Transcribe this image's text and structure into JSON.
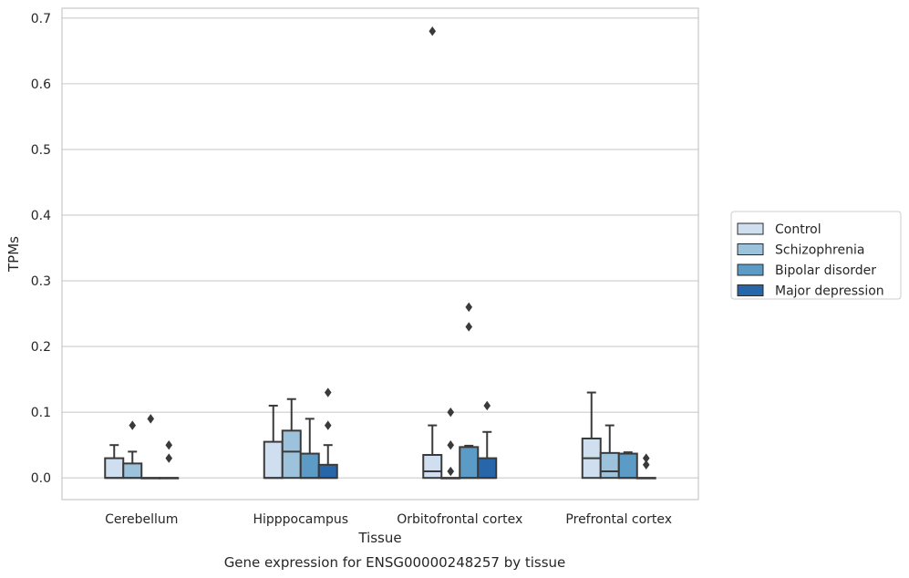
{
  "caption": "Gene expression for ENSG00000248257 by tissue",
  "colors": {
    "Control": "#cfdff0",
    "Schizophrenia": "#9dc3dc",
    "Bipolar disorder": "#5b9bc6",
    "Major depression": "#2766a8",
    "outline": "#3a3a3a",
    "grid": "#cccccc",
    "frame": "#c8c8c8"
  },
  "chart_data": {
    "type": "boxplot",
    "title": "",
    "xlabel": "Tissue",
    "ylabel": "TPMs",
    "ylim": [
      -0.033,
      0.715
    ],
    "yticks": [
      0.0,
      0.1,
      0.2,
      0.3,
      0.4,
      0.5,
      0.6,
      0.7
    ],
    "ytick_labels": [
      "0.0",
      "0.1",
      "0.2",
      "0.3",
      "0.4",
      "0.5",
      "0.6",
      "0.7"
    ],
    "grid": true,
    "legend_position": "right",
    "categories": [
      "Cerebellum",
      "Hipppocampus",
      "Orbitofrontal cortex",
      "Prefrontal cortex"
    ],
    "series": [
      {
        "name": "Control",
        "boxes": [
          {
            "q1": 0.0,
            "median": 0.0,
            "q3": 0.03,
            "whisker_low": 0.0,
            "whisker_high": 0.05,
            "outliers": []
          },
          {
            "q1": 0.0,
            "median": 0.0,
            "q3": 0.055,
            "whisker_low": 0.0,
            "whisker_high": 0.11,
            "outliers": []
          },
          {
            "q1": 0.0,
            "median": 0.01,
            "q3": 0.035,
            "whisker_low": 0.0,
            "whisker_high": 0.08,
            "outliers": [
              0.68
            ]
          },
          {
            "q1": 0.0,
            "median": 0.03,
            "q3": 0.06,
            "whisker_low": 0.0,
            "whisker_high": 0.13,
            "outliers": []
          }
        ]
      },
      {
        "name": "Schizophrenia",
        "boxes": [
          {
            "q1": 0.0,
            "median": 0.0,
            "q3": 0.022,
            "whisker_low": 0.0,
            "whisker_high": 0.04,
            "outliers": [
              0.08
            ]
          },
          {
            "q1": 0.0,
            "median": 0.04,
            "q3": 0.072,
            "whisker_low": 0.0,
            "whisker_high": 0.12,
            "outliers": []
          },
          {
            "q1": 0.0,
            "median": 0.0,
            "q3": 0.0,
            "whisker_low": 0.0,
            "whisker_high": 0.0,
            "outliers": [
              0.01,
              0.05,
              0.1
            ]
          },
          {
            "q1": 0.0,
            "median": 0.01,
            "q3": 0.038,
            "whisker_low": 0.0,
            "whisker_high": 0.08,
            "outliers": []
          }
        ]
      },
      {
        "name": "Bipolar disorder",
        "boxes": [
          {
            "q1": 0.0,
            "median": 0.0,
            "q3": 0.0,
            "whisker_low": 0.0,
            "whisker_high": 0.0,
            "outliers": [
              0.09
            ]
          },
          {
            "q1": 0.0,
            "median": 0.0,
            "q3": 0.037,
            "whisker_low": 0.0,
            "whisker_high": 0.09,
            "outliers": []
          },
          {
            "q1": 0.0,
            "median": 0.0,
            "q3": 0.047,
            "whisker_low": 0.0,
            "whisker_high": 0.049,
            "outliers": [
              0.23,
              0.26
            ]
          },
          {
            "q1": 0.0,
            "median": 0.0,
            "q3": 0.037,
            "whisker_low": 0.0,
            "whisker_high": 0.039,
            "outliers": []
          }
        ]
      },
      {
        "name": "Major depression",
        "boxes": [
          {
            "q1": 0.0,
            "median": 0.0,
            "q3": 0.0,
            "whisker_low": 0.0,
            "whisker_high": 0.0,
            "outliers": [
              0.03,
              0.05
            ]
          },
          {
            "q1": 0.0,
            "median": 0.0,
            "q3": 0.02,
            "whisker_low": 0.0,
            "whisker_high": 0.05,
            "outliers": [
              0.08,
              0.13
            ]
          },
          {
            "q1": 0.0,
            "median": 0.0,
            "q3": 0.03,
            "whisker_low": 0.0,
            "whisker_high": 0.07,
            "outliers": [
              0.11
            ]
          },
          {
            "q1": 0.0,
            "median": 0.0,
            "q3": 0.0,
            "whisker_low": 0.0,
            "whisker_high": 0.0,
            "outliers": [
              0.02,
              0.03
            ]
          }
        ]
      }
    ]
  }
}
